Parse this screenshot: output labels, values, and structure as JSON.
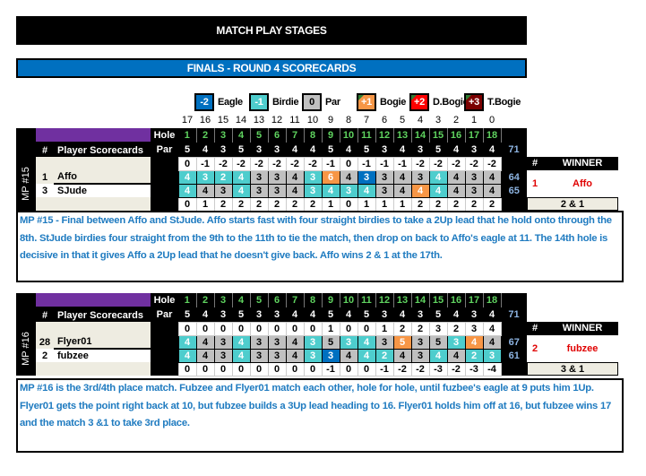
{
  "title": "MATCH PLAY STAGES",
  "subtitle": "FINALS   -  ROUND 4    SCORECARDS",
  "legend": [
    {
      "value": "-2",
      "label": "Eagle",
      "color": "#0070c0"
    },
    {
      "value": "-1",
      "label": "Birdie",
      "color": "#4ecdcd"
    },
    {
      "value": "0",
      "label": "Par",
      "color": "#c0c0c0"
    },
    {
      "value": "+1",
      "label": "Bogie",
      "color": "#f79646"
    },
    {
      "value": "+2",
      "label": "D.Bogie",
      "color": "#ff0000"
    },
    {
      "value": "+3",
      "label": "T.Bogie",
      "color": "#7b0000"
    }
  ],
  "holes_remaining": [
    "17",
    "16",
    "15",
    "14",
    "13",
    "12",
    "11",
    "10",
    "9",
    "8",
    "7",
    "6",
    "5",
    "4",
    "3",
    "2",
    "1",
    "0"
  ],
  "headers": {
    "hole": "Hole",
    "par": "Par",
    "num": "#",
    "player": "Player Scorecards",
    "winner_num": "#",
    "winner": "WINNER"
  },
  "holes": [
    "1",
    "2",
    "3",
    "4",
    "5",
    "6",
    "7",
    "8",
    "9",
    "10",
    "11",
    "12",
    "13",
    "14",
    "15",
    "16",
    "17",
    "18"
  ],
  "pars": [
    5,
    4,
    3,
    5,
    3,
    3,
    4,
    4,
    5,
    4,
    5,
    3,
    4,
    3,
    5,
    4,
    3,
    4
  ],
  "par_total": "71",
  "matches": [
    {
      "label": "MP #15",
      "status_top": [
        "0",
        "-1",
        "-2",
        "-2",
        "-2",
        "-2",
        "-2",
        "-2",
        "-1",
        "0",
        "-1",
        "-1",
        "-1",
        "-2",
        "-2",
        "-2",
        "-2",
        "-2"
      ],
      "players": [
        {
          "seed": "1",
          "name": "Affo",
          "scores": [
            4,
            3,
            2,
            4,
            3,
            3,
            4,
            3,
            6,
            4,
            3,
            3,
            4,
            3,
            4,
            4,
            3,
            4
          ],
          "total": "64"
        },
        {
          "seed": "3",
          "name": "SJude",
          "scores": [
            4,
            4,
            3,
            4,
            3,
            3,
            4,
            3,
            4,
            3,
            4,
            3,
            4,
            4,
            4,
            4,
            3,
            4
          ],
          "total": "65"
        }
      ],
      "status_bottom": [
        "0",
        "1",
        "2",
        "2",
        "2",
        "2",
        "2",
        "2",
        "1",
        "0",
        "1",
        "1",
        "1",
        "2",
        "2",
        "2",
        "2",
        "2"
      ],
      "winner_seed": "1",
      "winner": "Affo",
      "result": "2 & 1",
      "description": "MP #15 - Final between Affo and StJude.  Affo starts fast with four straight birdies to take a 2Up lead that he hold onto through the 8th.  StJude birdies four straight from the 9th to the 11th to tie the match, then drop on back to Affo's eagle at 11.  The 14th hole is decisive in that it gives Affo a 2Up lead that he doesn't give back.  Affo wins 2 & 1 at the 17th."
    },
    {
      "label": "MP #16",
      "status_top": [
        "0",
        "0",
        "0",
        "0",
        "0",
        "0",
        "0",
        "0",
        "1",
        "0",
        "0",
        "1",
        "2",
        "2",
        "3",
        "2",
        "3",
        "4"
      ],
      "players": [
        {
          "seed": "28",
          "name": "Flyer01",
          "scores": [
            4,
            4,
            3,
            4,
            3,
            3,
            4,
            3,
            5,
            3,
            4,
            3,
            5,
            3,
            5,
            3,
            4,
            4
          ],
          "total": "67"
        },
        {
          "seed": "2",
          "name": "fubzee",
          "scores": [
            4,
            4,
            3,
            4,
            3,
            3,
            4,
            3,
            3,
            4,
            4,
            2,
            4,
            3,
            4,
            4,
            2,
            3
          ],
          "total": "61"
        }
      ],
      "status_bottom": [
        "0",
        "0",
        "0",
        "0",
        "0",
        "0",
        "0",
        "0",
        "-1",
        "0",
        "0",
        "-1",
        "-2",
        "-2",
        "-3",
        "-2",
        "-3",
        "-4"
      ],
      "winner_seed": "2",
      "winner": "fubzee",
      "result": "3 & 1",
      "description": "MP #16 is the 3rd/4th place match.  Fubzee and Flyer01 match each other, hole for hole, until fuzbee's eagle at 9 puts him 1Up.  Flyer01 gets the point right back at 10, but fubzee builds a 3Up lead heading to 16.  Flyer01 holds him off at 16, but fubzee wins 17 and the match 3 &1 to take 3rd place."
    }
  ]
}
